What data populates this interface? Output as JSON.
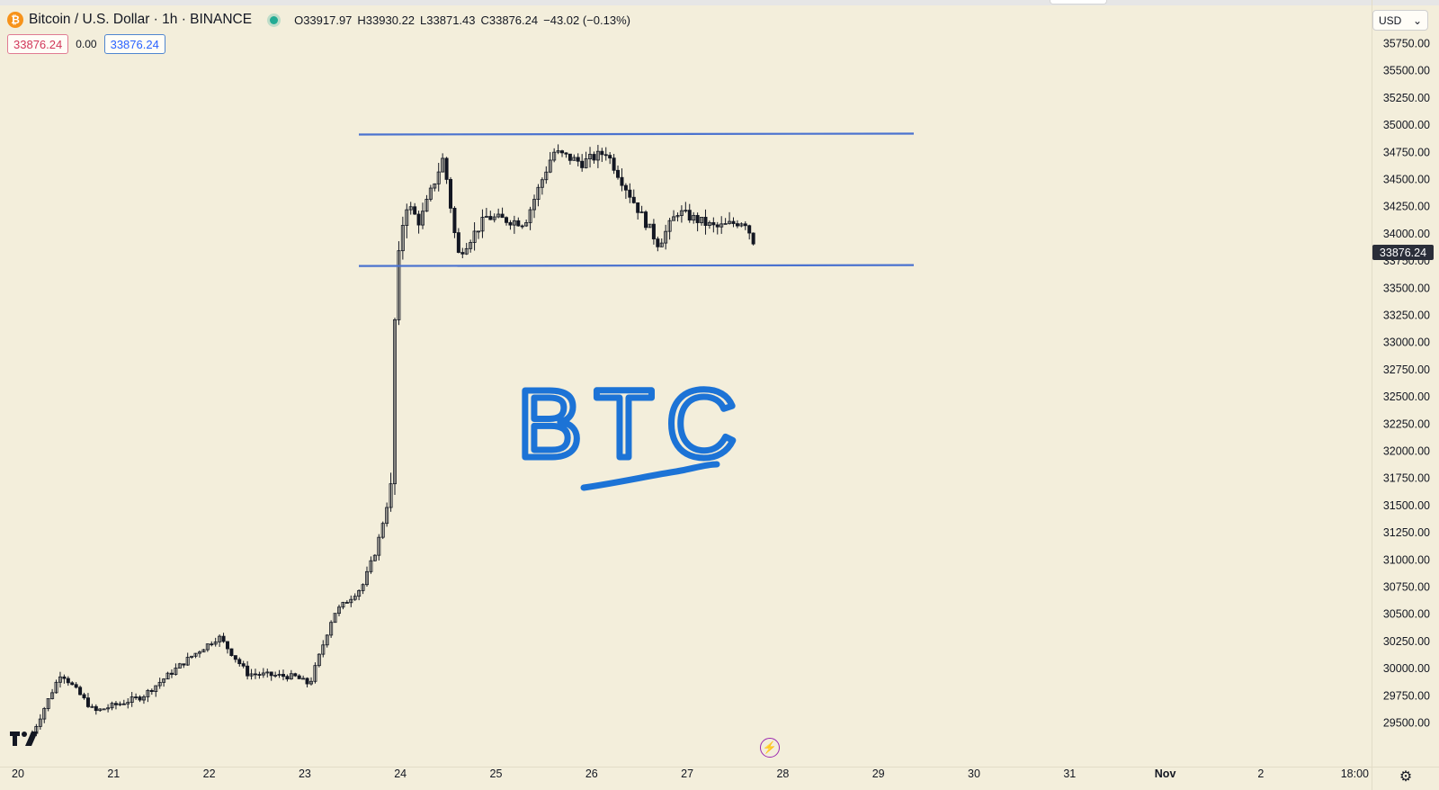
{
  "legend": {
    "symbol": "Bitcoin / U.S. Dollar · 1h · BINANCE",
    "open": "O33917.97",
    "high": "H33930.22",
    "low": "L33871.43",
    "close": "C33876.24",
    "change": "−43.02 (−0.13%)"
  },
  "price_boxes": {
    "sell": "33876.24",
    "spread": "0.00",
    "buy": "33876.24"
  },
  "currency": {
    "label": "USD",
    "chevron": "⌄"
  },
  "last_price_tag": "33876.24",
  "annotation_text": "BTC",
  "colors": {
    "background": "#f3eedb",
    "channel_line": "#4a72cf",
    "candle": "#131722",
    "annotation": "#1c73d6",
    "up": "#22ab94",
    "down": "#d1375a"
  },
  "icons": {
    "coin": "bitcoin-icon",
    "logo": "tradingview-logo",
    "lightning": "lightning-icon",
    "settings": "gear-icon"
  },
  "chart_data": {
    "type": "candlestick",
    "ylim": [
      29350,
      35950
    ],
    "y_ticks": [
      "35750.00",
      "35500.00",
      "35250.00",
      "35000.00",
      "34750.00",
      "34500.00",
      "34250.00",
      "34000.00",
      "33750.00",
      "33500.00",
      "33250.00",
      "33000.00",
      "32750.00",
      "32500.00",
      "32250.00",
      "32000.00",
      "31750.00",
      "31500.00",
      "31250.00",
      "31000.00",
      "30750.00",
      "30500.00",
      "30250.00",
      "30000.00",
      "29750.00",
      "29500.00"
    ],
    "x_ticks": [
      "20",
      "21",
      "22",
      "23",
      "24",
      "25",
      "26",
      "27",
      "28",
      "29",
      "30",
      "31",
      "Nov",
      "2",
      "18:00"
    ],
    "channel": {
      "upper": 34910,
      "lower": 33700
    },
    "anchors": [
      {
        "day": 20.15,
        "price": 29400
      },
      {
        "day": 20.45,
        "price": 29960
      },
      {
        "day": 20.8,
        "price": 29600
      },
      {
        "day": 21.3,
        "price": 29740
      },
      {
        "day": 21.8,
        "price": 30100
      },
      {
        "day": 22.1,
        "price": 30290
      },
      {
        "day": 22.4,
        "price": 29950
      },
      {
        "day": 22.9,
        "price": 29920
      },
      {
        "day": 23.05,
        "price": 29850
      },
      {
        "day": 23.3,
        "price": 30500
      },
      {
        "day": 23.6,
        "price": 30750
      },
      {
        "day": 23.75,
        "price": 31100
      },
      {
        "day": 23.9,
        "price": 31650
      },
      {
        "day": 23.95,
        "price": 33500
      },
      {
        "day": 24.05,
        "price": 34300
      },
      {
        "day": 24.2,
        "price": 34100
      },
      {
        "day": 24.45,
        "price": 34700
      },
      {
        "day": 24.6,
        "price": 33800
      },
      {
        "day": 24.9,
        "price": 34150
      },
      {
        "day": 25.3,
        "price": 34100
      },
      {
        "day": 25.6,
        "price": 34750
      },
      {
        "day": 25.9,
        "price": 34650
      },
      {
        "day": 26.15,
        "price": 34750
      },
      {
        "day": 26.5,
        "price": 34200
      },
      {
        "day": 26.7,
        "price": 33900
      },
      {
        "day": 26.9,
        "price": 34200
      },
      {
        "day": 27.3,
        "price": 34050
      },
      {
        "day": 27.6,
        "price": 34120
      },
      {
        "day": 27.72,
        "price": 33876
      }
    ]
  }
}
